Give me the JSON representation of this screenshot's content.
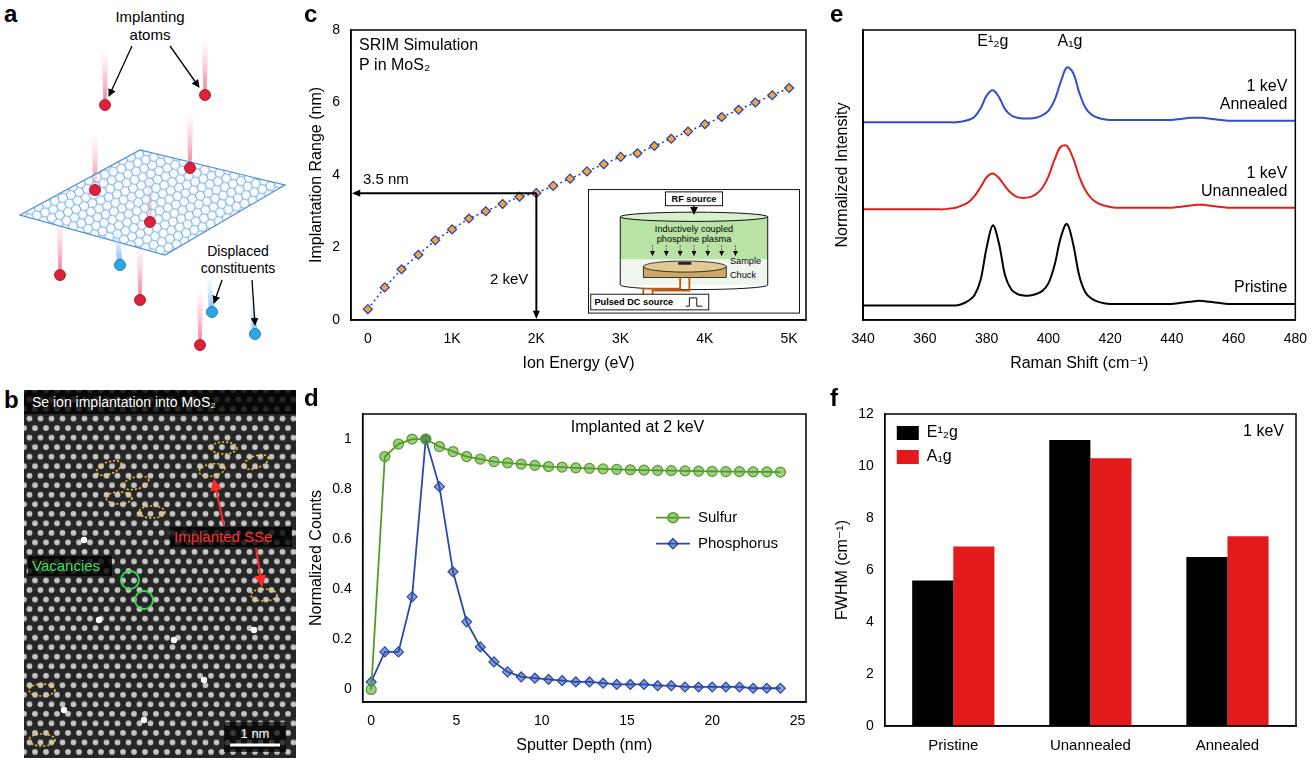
{
  "diagrams": [
    {
      "panel": "a",
      "labels": {
        "implanting": "Implanting atoms",
        "displaced": "Displaced constituents"
      }
    },
    {
      "panel": "b",
      "title": "Se ion implantation into MoS₂",
      "vacancies": "Vacancies",
      "implanted": "Implanted SSe",
      "scale_bar": "1 nm"
    }
  ],
  "chart_data": [
    {
      "panel": "c",
      "type": "line",
      "annotations": [
        "SRIM Simulation",
        "P in MoS₂"
      ],
      "x_label": "Ion Energy (eV)",
      "y_label": "Implantation Range (nm)",
      "x": [
        0,
        200,
        400,
        600,
        800,
        1000,
        1200,
        1400,
        1600,
        1800,
        2000,
        2200,
        2400,
        2600,
        2800,
        3000,
        3200,
        3400,
        3600,
        3800,
        4000,
        4200,
        4400,
        4600,
        4800,
        5000
      ],
      "values": [
        0.3,
        0.9,
        1.4,
        1.8,
        2.2,
        2.5,
        2.8,
        3.0,
        3.2,
        3.4,
        3.5,
        3.7,
        3.9,
        4.1,
        4.3,
        4.5,
        4.6,
        4.8,
        5.0,
        5.2,
        5.4,
        5.6,
        5.8,
        6.0,
        6.2,
        6.4
      ],
      "color": "#1f3fbf",
      "marker": "diamond",
      "line_style": "dotted",
      "xlim": [
        -200,
        5200
      ],
      "xticks": [
        0,
        {
          "value": 1000,
          "label": "1K"
        },
        {
          "value": 2000,
          "label": "2K"
        },
        {
          "value": 3000,
          "label": "3K"
        },
        {
          "value": 4000,
          "label": "4K"
        },
        {
          "value": 5000,
          "label": "5K"
        }
      ],
      "ylim": [
        0,
        8
      ],
      "yticks": [
        0,
        2,
        4,
        6,
        8
      ],
      "guides": {
        "x": 2000,
        "y": 3.5,
        "x_label": "2 keV",
        "y_label": "3.5 nm"
      },
      "inset": {
        "rf": "RF source",
        "plasma": "Inductively coupled phosphine plasma",
        "sample": "Sample",
        "chuck": "Chuck",
        "dc": "Pulsed DC source"
      },
      "grid": false
    },
    {
      "panel": "d",
      "type": "line",
      "annotations": [
        "Implanted at 2 keV"
      ],
      "x_label": "Sputter Depth (nm)",
      "y_label": "Normalized Counts",
      "x": [
        0,
        0.8,
        1.6,
        2.4,
        3.2,
        4,
        4.8,
        5.6,
        6.4,
        7.2,
        8,
        8.8,
        9.6,
        10.4,
        11.2,
        12,
        12.8,
        13.6,
        14.4,
        15.2,
        16,
        16.8,
        17.6,
        18.4,
        19.2,
        20,
        20.8,
        21.6,
        22.4,
        23.2,
        24
      ],
      "series": [
        {
          "name": "Sulfur",
          "color": "#4f9e22",
          "marker": "circle",
          "line_style": "solid",
          "values": [
            0,
            0.93,
            0.98,
            1.0,
            1.0,
            0.97,
            0.95,
            0.93,
            0.92,
            0.91,
            0.905,
            0.9,
            0.895,
            0.89,
            0.888,
            0.885,
            0.883,
            0.881,
            0.879,
            0.877,
            0.876,
            0.875,
            0.874,
            0.873,
            0.872,
            0.871,
            0.87,
            0.87,
            0.869,
            0.869,
            0.868
          ]
        },
        {
          "name": "Phosphorus",
          "color": "#2b4aa8",
          "marker": "diamond",
          "line_style": "solid",
          "values": [
            0.03,
            0.15,
            0.15,
            0.37,
            1.0,
            0.81,
            0.47,
            0.27,
            0.17,
            0.11,
            0.07,
            0.05,
            0.045,
            0.04,
            0.035,
            0.03,
            0.03,
            0.025,
            0.02,
            0.02,
            0.02,
            0.015,
            0.015,
            0.01,
            0.01,
            0.01,
            0.01,
            0.01,
            0.005,
            0.005,
            0.005
          ]
        }
      ],
      "xlim": [
        -0.5,
        25.5
      ],
      "xticks": [
        0,
        5,
        10,
        15,
        20,
        25
      ],
      "ylim": [
        -0.05,
        1.1
      ],
      "yticks": [
        0,
        0.2,
        0.4,
        0.6,
        0.8,
        1
      ],
      "legend": "right",
      "grid": false
    },
    {
      "panel": "e",
      "type": "line",
      "x_label": "Raman Shift (cm⁻¹)",
      "y_label": "Normalized Intensity",
      "peak_labels": [
        {
          "text": "E¹₂g",
          "x": 382
        },
        {
          "text": "A₁g",
          "x": 407
        }
      ],
      "x": [
        340,
        342,
        344,
        346,
        348,
        350,
        352,
        354,
        356,
        358,
        360,
        362,
        364,
        366,
        368,
        370,
        372,
        374,
        376,
        378,
        380,
        382,
        384,
        386,
        388,
        390,
        392,
        394,
        396,
        398,
        400,
        402,
        404,
        406,
        408,
        410,
        412,
        414,
        416,
        418,
        420,
        422,
        424,
        426,
        428,
        430,
        432,
        434,
        436,
        438,
        440,
        442,
        444,
        446,
        448,
        450,
        452,
        454,
        456,
        458,
        460,
        462,
        464,
        466,
        468,
        470,
        472,
        474,
        476,
        478,
        480
      ],
      "series": [
        {
          "name": "1 keV Annealed",
          "color": "#2f4fd0",
          "values": [
            2.59,
            2.59,
            2.59,
            2.59,
            2.59,
            2.59,
            2.59,
            2.59,
            2.59,
            2.59,
            2.59,
            2.59,
            2.59,
            2.59,
            2.59,
            2.59,
            2.6,
            2.62,
            2.66,
            2.77,
            2.94,
            3.01,
            2.92,
            2.76,
            2.68,
            2.65,
            2.64,
            2.64,
            2.65,
            2.68,
            2.74,
            2.88,
            3.12,
            3.31,
            3.24,
            2.98,
            2.78,
            2.69,
            2.65,
            2.63,
            2.62,
            2.62,
            2.62,
            2.62,
            2.62,
            2.62,
            2.62,
            2.62,
            2.62,
            2.62,
            2.62,
            2.63,
            2.64,
            2.65,
            2.65,
            2.65,
            2.64,
            2.63,
            2.62,
            2.61,
            2.61,
            2.61,
            2.61,
            2.61,
            2.61,
            2.61,
            2.61,
            2.61,
            2.61,
            2.61,
            2.61
          ]
        },
        {
          "name": "1 keV Unannealed",
          "color": "#e0201c",
          "values": [
            1.45,
            1.45,
            1.45,
            1.45,
            1.45,
            1.45,
            1.45,
            1.45,
            1.45,
            1.45,
            1.45,
            1.45,
            1.45,
            1.45,
            1.46,
            1.47,
            1.5,
            1.54,
            1.62,
            1.74,
            1.87,
            1.92,
            1.86,
            1.75,
            1.66,
            1.61,
            1.6,
            1.61,
            1.65,
            1.73,
            1.88,
            2.1,
            2.27,
            2.28,
            2.12,
            1.88,
            1.7,
            1.59,
            1.53,
            1.5,
            1.48,
            1.47,
            1.47,
            1.47,
            1.47,
            1.47,
            1.47,
            1.47,
            1.47,
            1.47,
            1.47,
            1.48,
            1.49,
            1.5,
            1.51,
            1.51,
            1.5,
            1.49,
            1.48,
            1.47,
            1.47,
            1.47,
            1.47,
            1.47,
            1.47,
            1.47,
            1.47,
            1.47,
            1.47,
            1.47,
            1.47
          ]
        },
        {
          "name": "Pristine",
          "color": "#000000",
          "values": [
            0.19,
            0.19,
            0.19,
            0.19,
            0.19,
            0.19,
            0.19,
            0.19,
            0.19,
            0.19,
            0.19,
            0.19,
            0.19,
            0.19,
            0.19,
            0.19,
            0.21,
            0.25,
            0.32,
            0.52,
            0.95,
            1.24,
            1.0,
            0.58,
            0.4,
            0.34,
            0.32,
            0.32,
            0.34,
            0.38,
            0.48,
            0.72,
            1.08,
            1.26,
            1.0,
            0.58,
            0.36,
            0.28,
            0.24,
            0.22,
            0.21,
            0.21,
            0.21,
            0.21,
            0.21,
            0.21,
            0.21,
            0.21,
            0.21,
            0.21,
            0.21,
            0.22,
            0.23,
            0.24,
            0.25,
            0.25,
            0.24,
            0.23,
            0.22,
            0.21,
            0.21,
            0.21,
            0.21,
            0.21,
            0.21,
            0.21,
            0.21,
            0.21,
            0.21,
            0.21,
            0.21
          ]
        }
      ],
      "xlim": [
        340,
        480
      ],
      "xticks": [
        340,
        360,
        380,
        400,
        420,
        440,
        460,
        480
      ],
      "ylim": [
        0,
        3.8
      ],
      "tick_labels": "x",
      "grid": false
    },
    {
      "panel": "f",
      "type": "bar",
      "annotations": [
        "1 keV"
      ],
      "y_label": "FWHM (cm⁻¹)",
      "categories": [
        "Pristine",
        "Unannealed",
        "Annealed"
      ],
      "series": [
        {
          "name": "E¹₂g",
          "color": "#000000",
          "values": [
            5.6,
            11.0,
            6.5
          ]
        },
        {
          "name": "A₁g",
          "color": "#e3191c",
          "values": [
            6.9,
            10.3,
            7.3
          ]
        }
      ],
      "ylim": [
        0,
        12
      ],
      "yticks": [
        0,
        2,
        4,
        6,
        8,
        10,
        12
      ],
      "legend": "upper-left",
      "grid": false
    }
  ]
}
